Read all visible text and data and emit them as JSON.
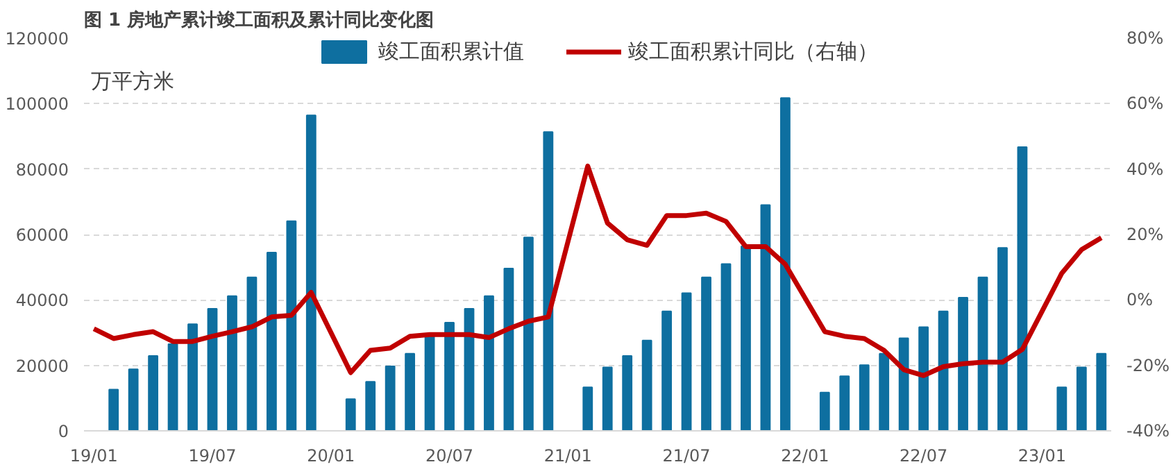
{
  "chart_data": {
    "type": "bar",
    "title": "图 1 房地产累计竣工面积及累计同比变化图",
    "ylabel": "万平方米",
    "categories": [
      "19/01",
      null,
      null,
      null,
      null,
      null,
      "19/07",
      null,
      null,
      null,
      null,
      null,
      "20/01",
      null,
      null,
      null,
      null,
      null,
      "20/07",
      null,
      null,
      null,
      null,
      null,
      "21/01",
      null,
      null,
      null,
      null,
      null,
      "21/07",
      null,
      null,
      null,
      null,
      null,
      "22/01",
      null,
      null,
      null,
      null,
      null,
      "22/07",
      null,
      null,
      null,
      null,
      null,
      "23/01",
      null,
      null,
      null
    ],
    "series": [
      {
        "name": "竣工面积累计值",
        "color": "#0e6fa0",
        "values": [
          null,
          12600,
          18800,
          22900,
          26500,
          32600,
          37300,
          41200,
          46900,
          54500,
          64100,
          96400,
          null,
          9700,
          15000,
          19700,
          23600,
          29000,
          33100,
          37300,
          41200,
          49600,
          59100,
          91300,
          null,
          13300,
          19400,
          22900,
          27600,
          36500,
          42100,
          46900,
          51000,
          56400,
          69000,
          101700,
          null,
          11700,
          16700,
          20100,
          23600,
          28300,
          31700,
          36500,
          40700,
          46900,
          55900,
          86700,
          null,
          13300,
          19400,
          23600
        ]
      },
      {
        "name": "竣工面积累计同比（右轴）",
        "type": "line",
        "axis": "y2",
        "color": "#c00000",
        "values": [
          -8.8,
          -11.8,
          -10.6,
          -9.7,
          -12.7,
          -12.7,
          -11.1,
          -9.7,
          -8.2,
          -5.2,
          -4.7,
          2.3,
          null,
          -22.2,
          -15.4,
          -14.7,
          -11.1,
          -10.6,
          -10.6,
          -10.6,
          -11.5,
          -8.8,
          -6.5,
          -5.2,
          null,
          40.9,
          23.5,
          18.4,
          16.7,
          25.8,
          25.8,
          26.5,
          24.0,
          16.3,
          16.3,
          10.9,
          null,
          -9.7,
          -11.1,
          -11.8,
          -15.4,
          -21.3,
          -23.1,
          -20.4,
          -19.5,
          -19.0,
          -19.0,
          -15.1,
          null,
          8.2,
          15.4,
          19.0
        ]
      }
    ],
    "ylim": [
      0,
      120000
    ],
    "yticks": [
      0,
      20000,
      40000,
      60000,
      80000,
      100000,
      120000
    ],
    "y2lim": [
      -40,
      80
    ],
    "y2ticks": [
      {
        "value": -40,
        "label": "-40%"
      },
      {
        "value": -20,
        "label": "-20%"
      },
      {
        "value": 0,
        "label": "0%"
      },
      {
        "value": 20,
        "label": "20%"
      },
      {
        "value": 40,
        "label": "40%"
      },
      {
        "value": 60,
        "label": "60%"
      },
      {
        "value": 80,
        "label": "80%"
      }
    ],
    "grid": "y",
    "legend": "top",
    "line_style": "solid"
  }
}
